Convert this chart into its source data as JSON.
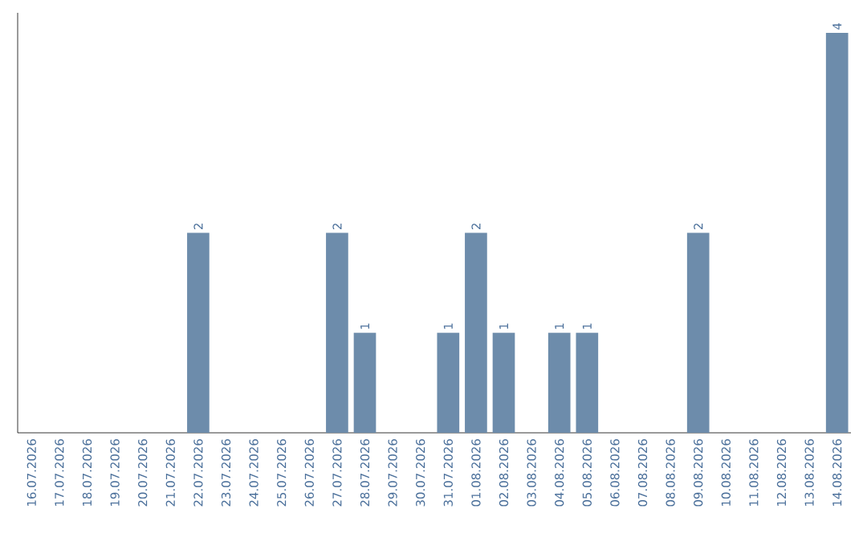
{
  "chart_data": {
    "type": "bar",
    "categories": [
      "16.07.2026",
      "17.07.2026",
      "18.07.2026",
      "19.07.2026",
      "20.07.2026",
      "21.07.2026",
      "22.07.2026",
      "23.07.2026",
      "24.07.2026",
      "25.07.2026",
      "26.07.2026",
      "27.07.2026",
      "28.07.2026",
      "29.07.2026",
      "30.07.2026",
      "31.07.2026",
      "01.08.2026",
      "02.08.2026",
      "03.08.2026",
      "04.08.2026",
      "05.08.2026",
      "06.08.2026",
      "07.08.2026",
      "08.08.2026",
      "09.08.2026",
      "10.08.2026",
      "11.08.2026",
      "12.08.2026",
      "13.08.2026",
      "14.08.2026"
    ],
    "values": [
      0,
      0,
      0,
      0,
      0,
      0,
      2,
      0,
      0,
      0,
      0,
      2,
      1,
      0,
      0,
      1,
      2,
      1,
      0,
      1,
      1,
      0,
      0,
      0,
      2,
      0,
      0,
      0,
      0,
      4
    ],
    "value_labels": [
      null,
      null,
      null,
      null,
      null,
      null,
      "2",
      null,
      null,
      null,
      null,
      "2",
      "1",
      null,
      null,
      "1",
      "2",
      "1",
      null,
      "1",
      "1",
      null,
      null,
      null,
      "2",
      null,
      null,
      null,
      null,
      "4"
    ],
    "color": "#6d8cab",
    "ylim": [
      0,
      4.2
    ],
    "tick_labels": "x"
  }
}
